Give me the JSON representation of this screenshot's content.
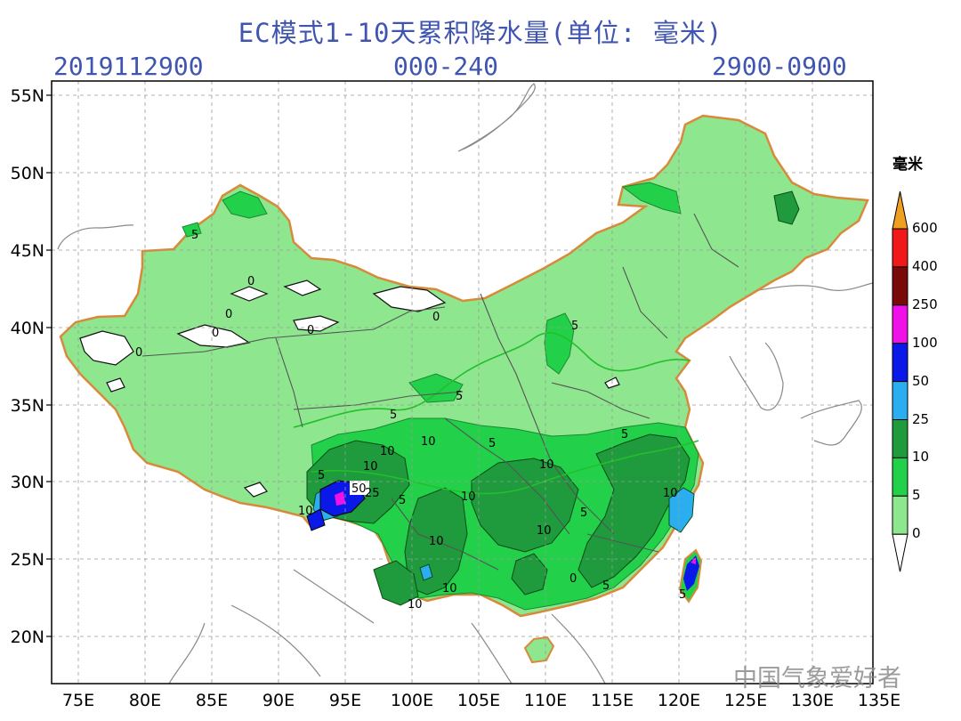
{
  "header": {
    "title": "EC模式1-10天累积降水量(单位: 毫米)",
    "init_time": "2019112900",
    "forecast_hours": "000-240",
    "valid_range": "2900-0900"
  },
  "axes": {
    "lat_ticks": [
      "55N",
      "50N",
      "45N",
      "40N",
      "35N",
      "30N",
      "25N",
      "20N"
    ],
    "lon_ticks": [
      "75E",
      "80E",
      "85E",
      "90E",
      "95E",
      "100E",
      "105E",
      "110E",
      "115E",
      "120E",
      "125E",
      "130E",
      "135E"
    ]
  },
  "legend": {
    "title": "毫米",
    "levels": [
      "0",
      "5",
      "10",
      "25",
      "50",
      "100",
      "250",
      "400",
      "600"
    ],
    "colors": [
      "#8ee68e",
      "#22d04a",
      "#1f9a3c",
      "#2aaef0",
      "#0a18e8",
      "#f010e8",
      "#7a0a0a",
      "#f01818",
      "#f0a020"
    ]
  },
  "contour_labels": [
    "5",
    "0",
    "0",
    "0",
    "0",
    "0",
    "0",
    "5",
    "5",
    "5",
    "10",
    "10",
    "10",
    "50",
    "25",
    "5",
    "10",
    "5",
    "5",
    "10",
    "10",
    "10",
    "5",
    "10",
    "10",
    "10",
    "5",
    "5",
    "10",
    "5",
    "0"
  ],
  "watermark": "中国气象爱好者",
  "colors": {
    "header_text": "#3f55b0",
    "boundary": "#d88a3a",
    "province_lines": "#555555"
  }
}
